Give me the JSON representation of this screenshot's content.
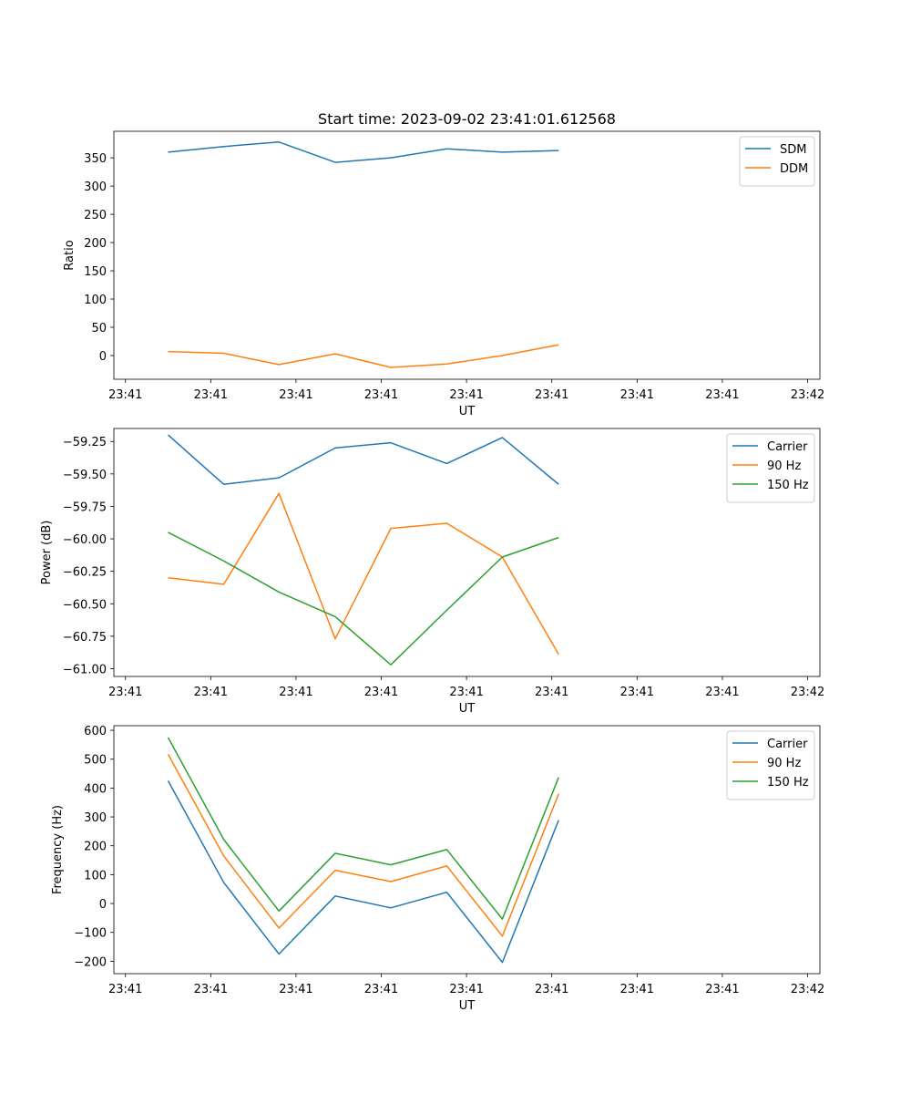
{
  "chart_data": [
    {
      "type": "line",
      "title": "Start time: 2023-09-02 23:41:01.612568",
      "xlabel": "UT",
      "ylabel": "Ratio",
      "xticks": [
        0,
        2.5,
        5,
        7.5,
        10,
        12.5,
        15,
        17.5,
        20
      ],
      "xtick_labels": [
        "23:41",
        "23:41",
        "23:41",
        "23:41",
        "23:41",
        "23:41",
        "23:41",
        "23:41",
        "23:42"
      ],
      "xlim": [
        -0.34,
        20.36
      ],
      "ylim": [
        -42,
        397
      ],
      "yticks": [
        0,
        50,
        100,
        150,
        200,
        250,
        300,
        350
      ],
      "ytick_labels": [
        "0",
        "50",
        "100",
        "150",
        "200",
        "250",
        "300",
        "350"
      ],
      "x": [
        1.25,
        2.88,
        4.5,
        6.15,
        7.78,
        9.42,
        11.05,
        12.7
      ],
      "series": [
        {
          "name": "SDM",
          "color": "#1f77b4",
          "values": [
            360,
            370,
            378,
            342,
            350,
            366,
            360,
            363
          ]
        },
        {
          "name": "DDM",
          "color": "#ff7f0e",
          "values": [
            7,
            4,
            -16,
            3,
            -21,
            -15,
            0,
            19
          ]
        }
      ],
      "legend": "top-right"
    },
    {
      "type": "line",
      "title": "",
      "xlabel": "UT",
      "ylabel": "Power (dB)",
      "xticks": [
        0,
        2.5,
        5,
        7.5,
        10,
        12.5,
        15,
        17.5,
        20
      ],
      "xtick_labels": [
        "23:41",
        "23:41",
        "23:41",
        "23:41",
        "23:41",
        "23:41",
        "23:41",
        "23:41",
        "23:42"
      ],
      "xlim": [
        -0.34,
        20.36
      ],
      "ylim": [
        -61.06,
        -59.15
      ],
      "yticks": [
        -61.0,
        -60.75,
        -60.5,
        -60.25,
        -60.0,
        -59.75,
        -59.5,
        -59.25
      ],
      "ytick_labels": [
        "−61.00",
        "−60.75",
        "−60.50",
        "−60.25",
        "−60.00",
        "−59.75",
        "−59.50",
        "−59.25"
      ],
      "x": [
        1.25,
        2.88,
        4.5,
        6.15,
        7.78,
        9.42,
        11.05,
        12.7
      ],
      "series": [
        {
          "name": "Carrier",
          "color": "#1f77b4",
          "values": [
            -59.2,
            -59.58,
            -59.53,
            -59.3,
            -59.26,
            -59.42,
            -59.22,
            -59.58
          ]
        },
        {
          "name": "90 Hz",
          "color": "#ff7f0e",
          "values": [
            -60.3,
            -60.35,
            -59.65,
            -60.77,
            -59.92,
            -59.88,
            -60.14,
            -60.89
          ]
        },
        {
          "name": "150 Hz",
          "color": "#2ca02c",
          "values": [
            -59.95,
            -60.17,
            -60.41,
            -60.6,
            -60.97,
            -60.55,
            -60.14,
            -59.99
          ]
        }
      ],
      "legend": "top-right"
    },
    {
      "type": "line",
      "title": "",
      "xlabel": "UT",
      "ylabel": "Frequency (Hz)",
      "xticks": [
        0,
        2.5,
        5,
        7.5,
        10,
        12.5,
        15,
        17.5,
        20
      ],
      "xtick_labels": [
        "23:41",
        "23:41",
        "23:41",
        "23:41",
        "23:41",
        "23:41",
        "23:41",
        "23:41",
        "23:42"
      ],
      "xlim": [
        -0.34,
        20.36
      ],
      "ylim": [
        -243,
        616
      ],
      "yticks": [
        -200,
        -100,
        0,
        100,
        200,
        300,
        400,
        500,
        600
      ],
      "ytick_labels": [
        "−200",
        "−100",
        "0",
        "100",
        "200",
        "300",
        "400",
        "500",
        "600"
      ],
      "x": [
        1.25,
        2.88,
        4.5,
        6.15,
        7.78,
        9.42,
        11.05,
        12.7
      ],
      "series": [
        {
          "name": "Carrier",
          "color": "#1f77b4",
          "values": [
            425,
            73,
            -175,
            26,
            -15,
            39,
            -204,
            289
          ]
        },
        {
          "name": "90 Hz",
          "color": "#ff7f0e",
          "values": [
            517,
            165,
            -85,
            115,
            76,
            130,
            -113,
            380
          ]
        },
        {
          "name": "150 Hz",
          "color": "#2ca02c",
          "values": [
            575,
            222,
            -26,
            174,
            134,
            187,
            -54,
            437
          ]
        }
      ],
      "legend": "top-right"
    }
  ]
}
